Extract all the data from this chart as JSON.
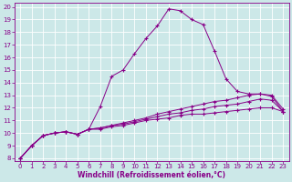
{
  "xlabel": "Windchill (Refroidissement éolien,°C)",
  "bg_color": "#cce8e8",
  "grid_color": "#ffffff",
  "line_color": "#880088",
  "x_values": [
    0,
    1,
    2,
    3,
    4,
    5,
    6,
    7,
    8,
    9,
    10,
    11,
    12,
    13,
    14,
    15,
    16,
    17,
    18,
    19,
    20,
    21,
    22,
    23
  ],
  "series_peak": [
    8.0,
    9.0,
    9.8,
    10.0,
    10.1,
    9.9,
    10.3,
    12.1,
    14.5,
    15.0,
    16.3,
    17.5,
    18.5,
    19.85,
    19.7,
    19.0,
    18.6,
    16.5,
    14.3,
    13.3,
    13.1,
    13.1,
    12.9,
    11.7
  ],
  "series_a": [
    8.0,
    9.0,
    9.8,
    10.0,
    10.1,
    9.9,
    10.3,
    10.4,
    10.6,
    10.8,
    11.0,
    11.2,
    11.5,
    11.7,
    11.9,
    12.1,
    12.3,
    12.5,
    12.6,
    12.8,
    13.0,
    13.1,
    13.0,
    11.9
  ],
  "series_b": [
    8.0,
    9.0,
    9.8,
    10.0,
    10.1,
    9.9,
    10.3,
    10.4,
    10.6,
    10.7,
    10.9,
    11.1,
    11.3,
    11.5,
    11.6,
    11.8,
    11.9,
    12.1,
    12.2,
    12.3,
    12.5,
    12.7,
    12.6,
    11.7
  ],
  "series_c": [
    8.0,
    9.0,
    9.8,
    10.0,
    10.1,
    9.9,
    10.3,
    10.3,
    10.5,
    10.6,
    10.8,
    11.0,
    11.1,
    11.2,
    11.4,
    11.5,
    11.5,
    11.6,
    11.7,
    11.8,
    11.9,
    12.0,
    12.0,
    11.7
  ],
  "ylim": [
    8,
    20
  ],
  "xlim": [
    0,
    23
  ],
  "yticks": [
    8,
    9,
    10,
    11,
    12,
    13,
    14,
    15,
    16,
    17,
    18,
    19,
    20
  ],
  "xticks": [
    0,
    1,
    2,
    3,
    4,
    5,
    6,
    7,
    8,
    9,
    10,
    11,
    12,
    13,
    14,
    15,
    16,
    17,
    18,
    19,
    20,
    21,
    22,
    23
  ],
  "tick_fontsize": 5,
  "xlabel_fontsize": 5.5
}
